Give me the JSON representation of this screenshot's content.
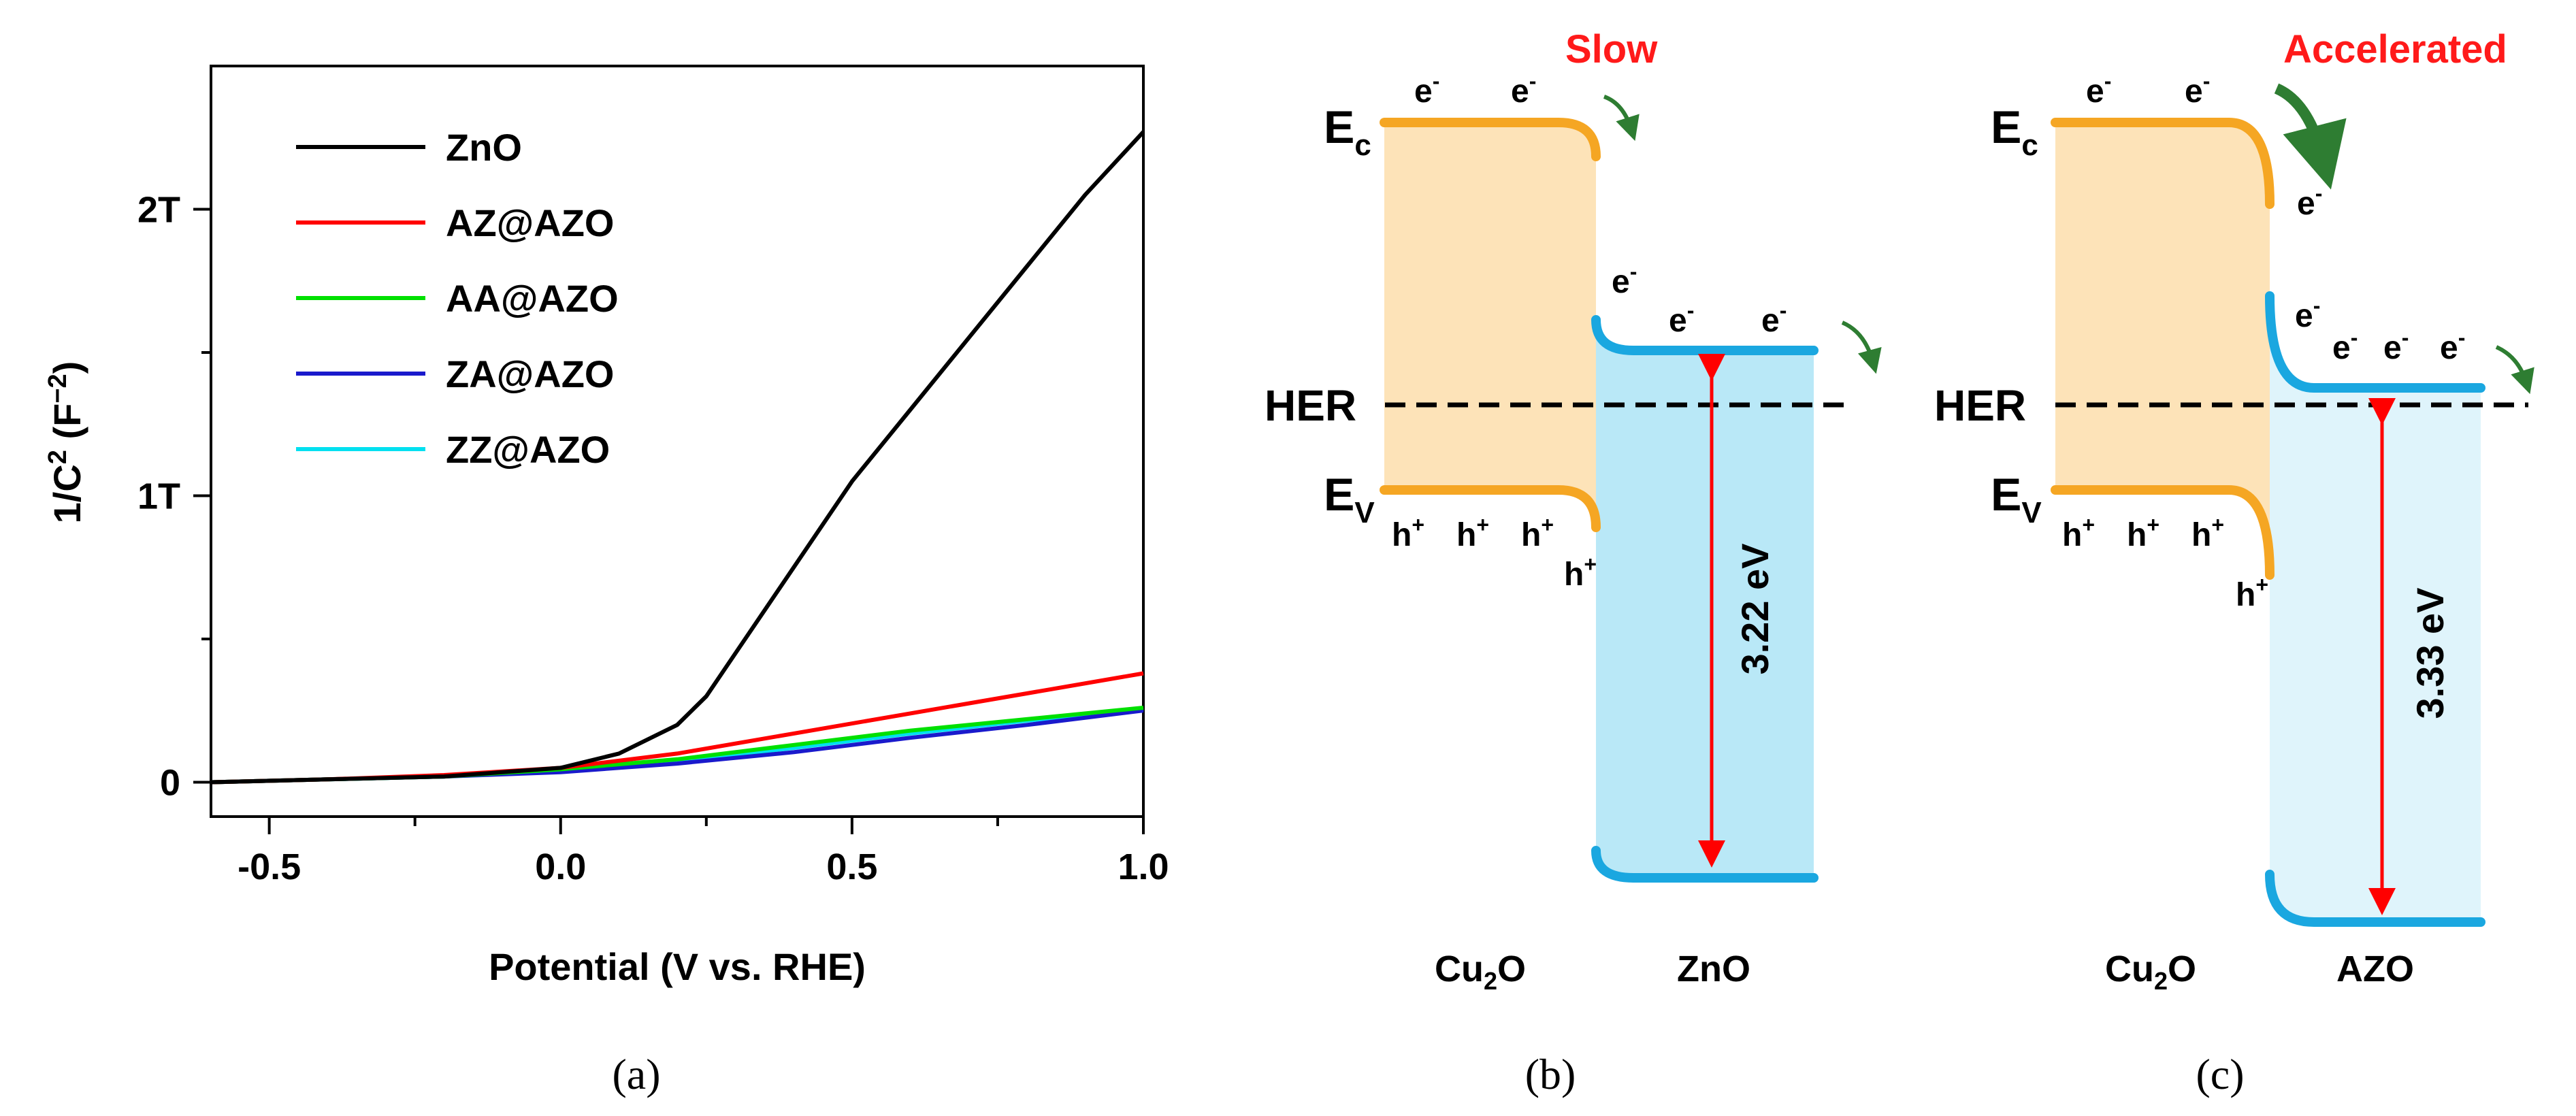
{
  "chart_data": [
    {
      "panel": "(a)",
      "type": "line",
      "title": "",
      "xlabel": "Potential (V vs. RHE)",
      "ylabel_parts": [
        "1/C",
        "2",
        " (F",
        "−2",
        ")"
      ],
      "xlim": [
        -0.6,
        1.0
      ],
      "ylim": [
        -0.12,
        2.5
      ],
      "xticks": [
        -0.5,
        0.0,
        0.5,
        1.0
      ],
      "xtick_labels": [
        "-0.5",
        "0.0",
        "0.5",
        "1.0"
      ],
      "yticks": [
        0,
        1,
        2
      ],
      "ytick_labels": [
        "0",
        "1T",
        "2T"
      ],
      "grid": false,
      "legend_position": "top-left",
      "series": [
        {
          "name": "ZnO",
          "color": "#000000",
          "x": [
            -0.6,
            -0.4,
            -0.2,
            0.0,
            0.1,
            0.2,
            0.25,
            0.3,
            0.4,
            0.5,
            0.6,
            0.7,
            0.8,
            0.9,
            1.0
          ],
          "y": [
            0.0,
            0.01,
            0.02,
            0.05,
            0.1,
            0.2,
            0.3,
            0.45,
            0.75,
            1.05,
            1.3,
            1.55,
            1.8,
            2.05,
            2.27
          ]
        },
        {
          "name": "AZ@AZO",
          "color": "#ff0000",
          "x": [
            -0.6,
            -0.4,
            -0.2,
            0.0,
            0.2,
            0.4,
            0.6,
            0.8,
            1.0
          ],
          "y": [
            0.0,
            0.01,
            0.025,
            0.05,
            0.1,
            0.17,
            0.24,
            0.31,
            0.38
          ]
        },
        {
          "name": "AA@AZO",
          "color": "#00e000",
          "x": [
            -0.6,
            -0.4,
            -0.2,
            0.0,
            0.2,
            0.4,
            0.6,
            0.8,
            1.0
          ],
          "y": [
            0.0,
            0.01,
            0.02,
            0.045,
            0.08,
            0.13,
            0.18,
            0.22,
            0.26
          ]
        },
        {
          "name": "ZA@AZO",
          "color": "#1a1acc",
          "x": [
            -0.6,
            -0.4,
            -0.2,
            0.0,
            0.2,
            0.4,
            0.6,
            0.8,
            1.0
          ],
          "y": [
            0.0,
            0.01,
            0.02,
            0.035,
            0.065,
            0.105,
            0.155,
            0.2,
            0.25
          ]
        },
        {
          "name": "ZZ@AZO",
          "color": "#00e0f0",
          "x": [
            -0.6,
            -0.4,
            -0.2,
            0.0,
            0.2,
            0.4,
            0.6,
            0.8,
            1.0
          ],
          "y": [
            0.0,
            0.01,
            0.02,
            0.04,
            0.075,
            0.12,
            0.17,
            0.215,
            0.255
          ]
        }
      ]
    },
    {
      "panel": "(b)",
      "type": "band-diagram",
      "label_slow": "Slow",
      "label_ec": "E",
      "label_ec_sub": "c",
      "label_ev": "E",
      "label_ev_sub": "V",
      "label_her": "HER",
      "electron": "e",
      "electron_sup": "-",
      "hole": "h",
      "hole_sup": "+",
      "bandgap": "3.22 eV",
      "left_material_base": "Cu",
      "left_material_sub": "2",
      "left_material_tail": "O",
      "right_material": "ZnO"
    },
    {
      "panel": "(c)",
      "type": "band-diagram",
      "label_accelerated": "Accelerated",
      "bandgap": "3.33 eV",
      "right_material": "AZO"
    }
  ],
  "panel_labels": [
    "(a)",
    "(b)",
    "(c)"
  ],
  "colors": {
    "cu2o_band": "#f5a623",
    "cu2o_fill": "#fde3b8",
    "zno_band": "#1aa7e0",
    "zno_fill_b": "#b9e8f7",
    "zno_fill_c": "#dff4fb",
    "arrow_red": "#ff0000",
    "arrow_green": "#2e7d32",
    "accent_red": "#ff1a1a"
  }
}
